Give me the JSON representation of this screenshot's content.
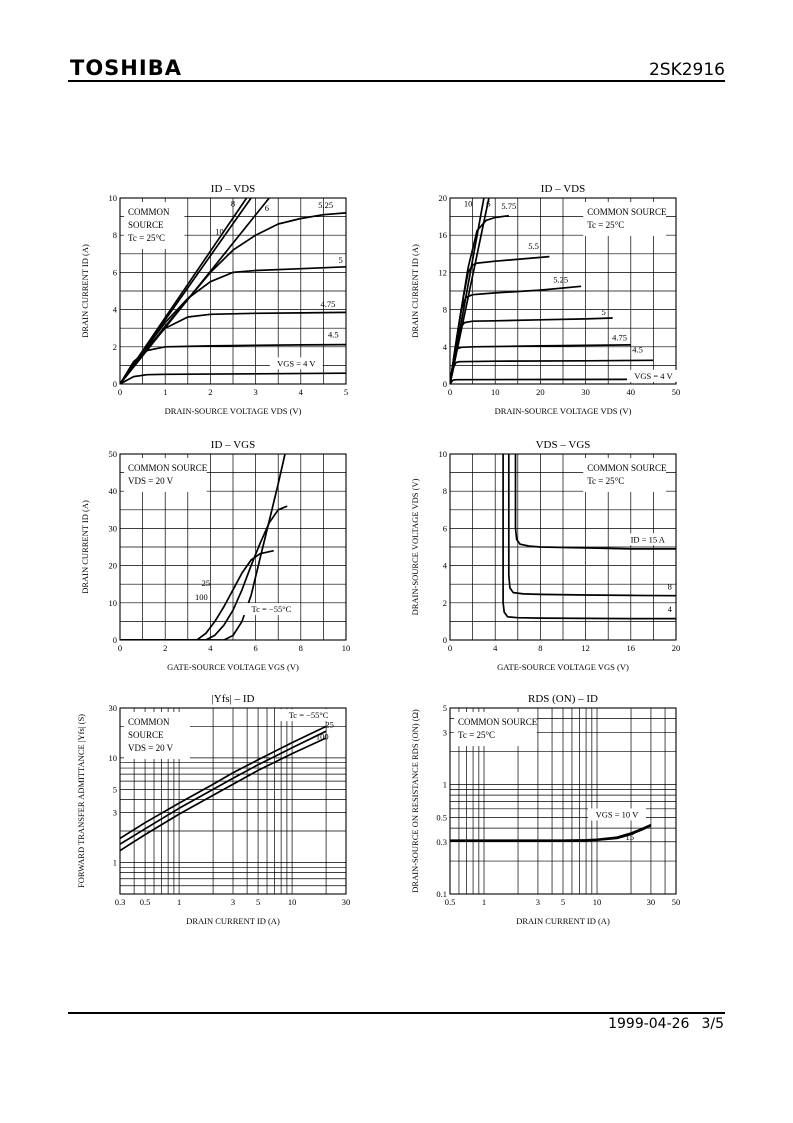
{
  "header": {
    "brand": "TOSHIBA",
    "part_number": "2SK2916"
  },
  "footer": {
    "date": "1999-04-26",
    "page": "3/5"
  },
  "colors": {
    "ink": "#000000",
    "grid": "#000000"
  },
  "chart_data": [
    {
      "type": "line",
      "title": "ID – VDS",
      "xlabel": "DRAIN-SOURCE VOLTAGE   VDS   (V)",
      "ylabel": "DRAIN CURRENT   ID   (A)",
      "xlim": [
        0,
        5
      ],
      "ylim": [
        0,
        10
      ],
      "xticks": [
        0,
        1,
        2,
        3,
        4,
        5
      ],
      "yticks": [
        0,
        2,
        4,
        6,
        8,
        10
      ],
      "annotation": [
        "COMMON",
        "SOURCE",
        "Tc = 25°C"
      ],
      "series": [
        {
          "name": "10",
          "x": [
            0,
            2.8
          ],
          "y": [
            0,
            10
          ]
        },
        {
          "name": "8",
          "x": [
            0,
            2.9
          ],
          "y": [
            0,
            10
          ]
        },
        {
          "name": "6",
          "x": [
            0,
            3.3
          ],
          "y": [
            0,
            10
          ]
        },
        {
          "name": "5.25",
          "x": [
            0,
            1,
            2,
            2.5,
            3,
            3.5,
            4,
            4.5,
            5
          ],
          "y": [
            0,
            3.1,
            6.0,
            7.2,
            8.0,
            8.6,
            8.9,
            9.1,
            9.2
          ]
        },
        {
          "name": "5",
          "x": [
            0,
            0.5,
            1,
            1.5,
            2,
            2.5,
            3,
            4,
            5
          ],
          "y": [
            0,
            1.7,
            3.3,
            4.6,
            5.5,
            6.0,
            6.1,
            6.2,
            6.3
          ]
        },
        {
          "name": "4.75",
          "x": [
            0,
            0.5,
            1,
            1.5,
            2,
            3,
            4,
            5
          ],
          "y": [
            0,
            1.7,
            3.0,
            3.6,
            3.75,
            3.8,
            3.82,
            3.85
          ]
        },
        {
          "name": "4.5",
          "x": [
            0,
            0.3,
            0.6,
            1,
            2,
            3,
            4,
            5
          ],
          "y": [
            0,
            1.2,
            1.8,
            2.0,
            2.05,
            2.08,
            2.1,
            2.12
          ]
        },
        {
          "name": "VGS = 4 V",
          "x": [
            0,
            0.3,
            0.6,
            1,
            3,
            5
          ],
          "y": [
            0,
            0.4,
            0.5,
            0.52,
            0.55,
            0.58
          ]
        }
      ],
      "labels": [
        {
          "text": "8",
          "x": 2.5,
          "y": 9.55
        },
        {
          "text": "6",
          "x": 3.25,
          "y": 9.3
        },
        {
          "text": "10",
          "x": 2.2,
          "y": 8.05
        },
        {
          "text": "5.25",
          "x": 4.55,
          "y": 9.45
        },
        {
          "text": "5",
          "x": 4.88,
          "y": 6.5
        },
        {
          "text": "4.75",
          "x": 4.6,
          "y": 4.15
        },
        {
          "text": "4.5",
          "x": 4.72,
          "y": 2.5
        }
      ],
      "boxed_label": "VGS = 4 V"
    },
    {
      "type": "line",
      "title": "ID – VDS",
      "xlabel": "DRAIN-SOURCE VOLTAGE   VDS   (V)",
      "ylabel": "DRAIN CURRENT   ID   (A)",
      "xlim": [
        0,
        50
      ],
      "ylim": [
        0,
        20
      ],
      "xticks": [
        0,
        10,
        20,
        30,
        40,
        50
      ],
      "yticks": [
        0,
        4,
        8,
        12,
        16,
        20
      ],
      "annotation": [
        "COMMON SOURCE",
        "Tc = 25°C"
      ],
      "series": [
        {
          "name": "10",
          "x": [
            0,
            7.5
          ],
          "y": [
            0,
            20
          ]
        },
        {
          "name": "6",
          "x": [
            0,
            8.6
          ],
          "y": [
            0,
            20
          ]
        },
        {
          "name": "5.75",
          "x": [
            0,
            2,
            4,
            6,
            8,
            10,
            13
          ],
          "y": [
            0,
            6.5,
            12.5,
            16.5,
            17.6,
            17.9,
            18.1
          ]
        },
        {
          "name": "5.5",
          "x": [
            0,
            1.5,
            3,
            4,
            5,
            6,
            10,
            22
          ],
          "y": [
            0,
            5,
            9.5,
            12,
            12.8,
            13.0,
            13.2,
            13.7
          ]
        },
        {
          "name": "5.25",
          "x": [
            0,
            1.5,
            2.5,
            3.5,
            5,
            10,
            20,
            29
          ],
          "y": [
            0,
            5,
            8,
            9.3,
            9.6,
            9.8,
            10.1,
            10.5
          ]
        },
        {
          "name": "5",
          "x": [
            0,
            1.2,
            2.2,
            3.2,
            5,
            10,
            20,
            30,
            36
          ],
          "y": [
            0,
            4,
            6,
            6.6,
            6.75,
            6.8,
            6.9,
            7.0,
            7.1
          ]
        },
        {
          "name": "4.75",
          "x": [
            0,
            1,
            1.6,
            2.5,
            5,
            20,
            40
          ],
          "y": [
            0,
            3,
            3.8,
            3.95,
            4.0,
            4.1,
            4.2
          ]
        },
        {
          "name": "4.5",
          "x": [
            0,
            0.8,
            1.3,
            2,
            10,
            30,
            45
          ],
          "y": [
            0,
            1.8,
            2.3,
            2.4,
            2.45,
            2.5,
            2.55
          ]
        },
        {
          "name": "VGS = 4 V",
          "x": [
            0,
            0.6,
            1,
            2,
            20,
            50
          ],
          "y": [
            0,
            0.4,
            0.45,
            0.46,
            0.48,
            0.5
          ]
        }
      ],
      "labels": [
        {
          "text": "10",
          "x": 4.0,
          "y": 19.1
        },
        {
          "text": "6",
          "x": 8.5,
          "y": 19.1
        },
        {
          "text": "5.75",
          "x": 13.0,
          "y": 18.8
        },
        {
          "text": "5.5",
          "x": 18.5,
          "y": 14.5
        },
        {
          "text": "5.25",
          "x": 24.5,
          "y": 10.9
        },
        {
          "text": "5",
          "x": 34.0,
          "y": 7.4
        },
        {
          "text": "4.75",
          "x": 37.5,
          "y": 4.7
        },
        {
          "text": "4.5",
          "x": 41.5,
          "y": 3.4
        }
      ],
      "boxed_label": "VGS = 4 V"
    },
    {
      "type": "line",
      "title": "ID – VGS",
      "xlabel": "GATE-SOURCE VOLTAGE   VGS   (V)",
      "ylabel": "DRAIN CURRENT   ID   (A)",
      "xlim": [
        0,
        10
      ],
      "ylim": [
        0,
        50
      ],
      "xticks": [
        0,
        2,
        4,
        6,
        8,
        10
      ],
      "yticks": [
        0,
        10,
        20,
        30,
        40,
        50
      ],
      "annotation": [
        "COMMON SOURCE",
        "VDS = 20 V"
      ],
      "series": [
        {
          "name": "Tc = −55°C",
          "x": [
            0,
            4.6,
            5.0,
            5.4,
            5.8,
            6.2,
            6.6,
            7.0,
            7.3
          ],
          "y": [
            0,
            0,
            1.2,
            5,
            12,
            22,
            32,
            42,
            50
          ]
        },
        {
          "name": "25",
          "x": [
            0,
            3.8,
            4.2,
            4.6,
            5.0,
            5.4,
            5.8,
            6.2,
            6.6,
            7.0,
            7.4
          ],
          "y": [
            0,
            0,
            1.3,
            4,
            8,
            13.5,
            20,
            26,
            31.5,
            35,
            36
          ]
        },
        {
          "name": "100",
          "x": [
            0,
            3.4,
            3.8,
            4.2,
            4.6,
            5.0,
            5.4,
            5.8,
            6.2,
            6.8
          ],
          "y": [
            0,
            0,
            1.8,
            5,
            9,
            13.5,
            18,
            21.5,
            23.2,
            24
          ]
        }
      ],
      "labels": [
        {
          "text": "25",
          "x": 3.8,
          "y": 14.5
        },
        {
          "text": "100",
          "x": 3.6,
          "y": 10.8
        }
      ],
      "boxed_label": "Tc = −55°C"
    },
    {
      "type": "line",
      "title": "VDS – VGS",
      "xlabel": "GATE-SOURCE VOLTAGE   VGS   (V)",
      "ylabel": "DRAIN-SOURCE VOLTAGE   VDS   (V)",
      "xlim": [
        0,
        20
      ],
      "ylim": [
        0,
        10
      ],
      "xticks": [
        0,
        4,
        8,
        12,
        16,
        20
      ],
      "yticks": [
        0,
        2,
        4,
        6,
        8,
        10
      ],
      "annotation": [
        "COMMON SOURCE",
        "Tc = 25°C"
      ],
      "series": [
        {
          "name": "ID = 15 A",
          "x": [
            5.8,
            5.8,
            5.9,
            6.2,
            7,
            8,
            12,
            16,
            20
          ],
          "y": [
            10,
            6,
            5.4,
            5.15,
            5.05,
            5.0,
            4.95,
            4.9,
            4.9
          ]
        },
        {
          "name": "8",
          "x": [
            5.2,
            5.2,
            5.3,
            5.6,
            6.5,
            8,
            12,
            16,
            20
          ],
          "y": [
            10,
            3.5,
            2.8,
            2.55,
            2.48,
            2.45,
            2.42,
            2.4,
            2.38
          ]
        },
        {
          "name": "4",
          "x": [
            4.7,
            4.7,
            4.8,
            5.1,
            6,
            8,
            12,
            16,
            20
          ],
          "y": [
            10,
            2.0,
            1.5,
            1.25,
            1.2,
            1.18,
            1.16,
            1.15,
            1.15
          ]
        }
      ],
      "labels": [
        {
          "text": "8",
          "x": 19.45,
          "y": 2.72
        },
        {
          "text": "4",
          "x": 19.45,
          "y": 1.5
        }
      ],
      "boxed_label": "ID = 15 A"
    },
    {
      "type": "line",
      "title": "|Yfs| – ID",
      "xlabel": "DRAIN CURRENT   ID   (A)",
      "ylabel": "FORWARD TRANSFER ADMITTANCE  |Yfs|  (S)",
      "xscale": "log",
      "yscale": "log",
      "xlim": [
        0.3,
        30
      ],
      "ylim": [
        0.5,
        30
      ],
      "xticks": [
        0.3,
        0.5,
        1,
        3,
        5,
        10,
        30
      ],
      "yticks": [
        1,
        3,
        5,
        10,
        30
      ],
      "annotation": [
        "COMMON",
        "SOURCE",
        "VDS = 20 V"
      ],
      "series": [
        {
          "name": "Tc = −55°C",
          "x": [
            0.3,
            0.5,
            1,
            2,
            3,
            5,
            10,
            20
          ],
          "y": [
            1.7,
            2.4,
            3.7,
            5.6,
            7.2,
            9.6,
            14,
            20
          ]
        },
        {
          "name": "25",
          "x": [
            0.3,
            0.5,
            1,
            2,
            3,
            5,
            10,
            20
          ],
          "y": [
            1.5,
            2.1,
            3.3,
            5.0,
            6.4,
            8.6,
            12.5,
            18
          ]
        },
        {
          "name": "100",
          "x": [
            0.3,
            0.5,
            1,
            2,
            3,
            5,
            10,
            20
          ],
          "y": [
            1.3,
            1.85,
            2.9,
            4.4,
            5.6,
            7.6,
            11,
            15.5
          ]
        }
      ],
      "labels": [
        {
          "text": "25",
          "x": 21.5,
          "y": 19.5
        },
        {
          "text": "100",
          "x": 18.5,
          "y": 15
        }
      ],
      "boxed_label": "Tc = −55°C"
    },
    {
      "type": "line",
      "title": "RDS (ON) – ID",
      "xlabel": "DRAIN CURRENT   ID   (A)",
      "ylabel": "DRAIN-SOURCE ON RESISTANCE  RDS (ON)  (Ω)",
      "xscale": "log",
      "yscale": "log",
      "xlim": [
        0.5,
        50
      ],
      "ylim": [
        0.1,
        5
      ],
      "xticks": [
        0.5,
        1,
        3,
        5,
        10,
        30,
        50
      ],
      "yticks": [
        0.1,
        0.3,
        0.5,
        1,
        3,
        5
      ],
      "annotation": [
        "COMMON SOURCE",
        "Tc = 25°C"
      ],
      "series": [
        {
          "name": "VGS = 10 V",
          "x": [
            0.5,
            1,
            3,
            5,
            8,
            10,
            15,
            20,
            25,
            30
          ],
          "y": [
            0.31,
            0.31,
            0.31,
            0.31,
            0.312,
            0.316,
            0.33,
            0.36,
            0.395,
            0.43
          ]
        },
        {
          "name": "15",
          "x": [
            0.5,
            1,
            3,
            5,
            8,
            10,
            15,
            20,
            25,
            30
          ],
          "y": [
            0.305,
            0.305,
            0.305,
            0.305,
            0.307,
            0.31,
            0.322,
            0.35,
            0.385,
            0.42
          ]
        }
      ],
      "labels": [
        {
          "text": "15",
          "x": 19.5,
          "y": 0.31
        }
      ],
      "boxed_label": "VGS = 10 V"
    }
  ]
}
